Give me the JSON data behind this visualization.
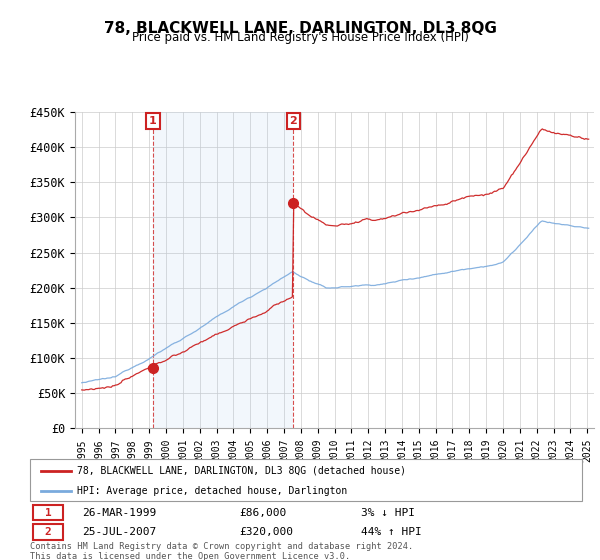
{
  "title": "78, BLACKWELL LANE, DARLINGTON, DL3 8QG",
  "subtitle": "Price paid vs. HM Land Registry's House Price Index (HPI)",
  "legend_line1": "78, BLACKWELL LANE, DARLINGTON, DL3 8QG (detached house)",
  "legend_line2": "HPI: Average price, detached house, Darlington",
  "sale1_date": "26-MAR-1999",
  "sale1_price": "£86,000",
  "sale1_hpi": "3% ↓ HPI",
  "sale1_year": 1999.23,
  "sale1_value": 86000,
  "sale2_date": "25-JUL-2007",
  "sale2_price": "£320,000",
  "sale2_hpi": "44% ↑ HPI",
  "sale2_year": 2007.56,
  "sale2_value": 320000,
  "hpi_color": "#7aaadd",
  "price_color": "#cc2222",
  "shade_color": "#ddeeff",
  "marker_color": "#cc2222",
  "box_color": "#cc2222",
  "footer": "Contains HM Land Registry data © Crown copyright and database right 2024.\nThis data is licensed under the Open Government Licence v3.0.",
  "ylim": [
    0,
    450000
  ],
  "xlim": [
    1994.6,
    2025.4
  ],
  "yticks": [
    0,
    50000,
    100000,
    150000,
    200000,
    250000,
    300000,
    350000,
    400000,
    450000
  ],
  "ytick_labels": [
    "£0",
    "£50K",
    "£100K",
    "£150K",
    "£200K",
    "£250K",
    "£300K",
    "£350K",
    "£400K",
    "£450K"
  ]
}
